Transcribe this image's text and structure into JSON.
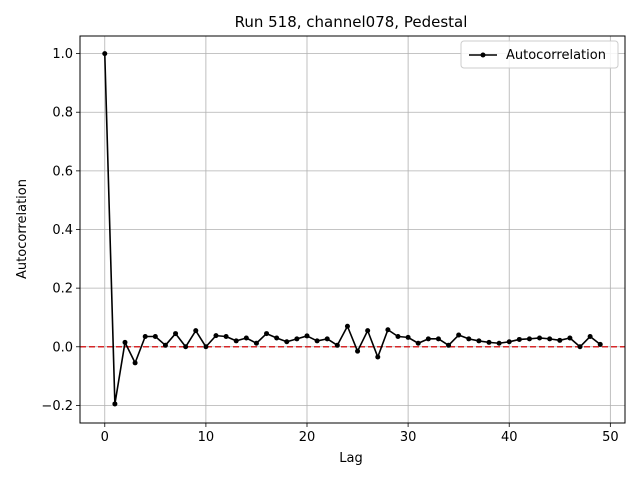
{
  "chart_data": {
    "type": "line",
    "title": "Run 518, channel078, Pedestal",
    "xlabel": "Lag",
    "ylabel": "Autocorrelation",
    "xlim": [
      -2.45,
      51.45
    ],
    "ylim": [
      -0.26,
      1.06
    ],
    "xticks": [
      0,
      10,
      20,
      30,
      40,
      50
    ],
    "yticks": [
      -0.2,
      0.0,
      0.2,
      0.4,
      0.6,
      0.8,
      1.0
    ],
    "xtick_labels": [
      "0",
      "10",
      "20",
      "30",
      "40",
      "50"
    ],
    "ytick_labels": [
      "−0.2",
      "0.0",
      "0.2",
      "0.4",
      "0.6",
      "0.8",
      "1.0"
    ],
    "grid": true,
    "legend_position": "top-right",
    "reference_line": {
      "y": 0.0,
      "color": "#d62728",
      "style": "dashed"
    },
    "series": [
      {
        "name": "Autocorrelation",
        "color": "#000000",
        "marker": "circle",
        "x": [
          0,
          1,
          2,
          3,
          4,
          5,
          6,
          7,
          8,
          9,
          10,
          11,
          12,
          13,
          14,
          15,
          16,
          17,
          18,
          19,
          20,
          21,
          22,
          23,
          24,
          25,
          26,
          27,
          28,
          29,
          30,
          31,
          32,
          33,
          34,
          35,
          36,
          37,
          38,
          39,
          40,
          41,
          42,
          43,
          44,
          45,
          46,
          47,
          48,
          49
        ],
        "y": [
          1.0,
          -0.195,
          0.015,
          -0.055,
          0.035,
          0.035,
          0.005,
          0.045,
          0.0,
          0.055,
          0.0,
          0.038,
          0.035,
          0.02,
          0.03,
          0.012,
          0.045,
          0.03,
          0.017,
          0.027,
          0.037,
          0.02,
          0.027,
          0.005,
          0.07,
          -0.015,
          0.055,
          -0.035,
          0.058,
          0.035,
          0.032,
          0.012,
          0.027,
          0.027,
          0.005,
          0.04,
          0.027,
          0.02,
          0.015,
          0.012,
          0.017,
          0.025,
          0.027,
          0.03,
          0.027,
          0.022,
          0.03,
          0.0,
          0.035,
          0.008
        ]
      }
    ]
  }
}
